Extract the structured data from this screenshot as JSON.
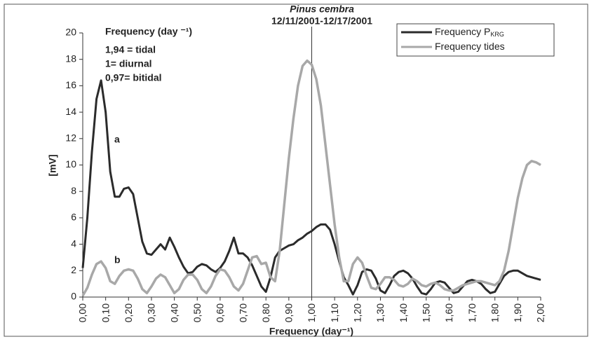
{
  "chart_data": {
    "type": "line",
    "title": "Pinus cembra",
    "subtitle": "12/11/2001-12/17/2001",
    "xlabel": "Frequency (day⁻¹)",
    "ylabel": "[mV]",
    "annotations": [
      "Frequency (day ⁻¹)",
      "1,94 = tidal",
      "1= diurnal",
      "0,97= bitidal"
    ],
    "curve_labels": [
      "a",
      "b"
    ],
    "vline": 1,
    "x": [
      0,
      0.02,
      0.04,
      0.06,
      0.08,
      0.1,
      0.12,
      0.14,
      0.16,
      0.18,
      0.2,
      0.22,
      0.24,
      0.26,
      0.28,
      0.3,
      0.32,
      0.34,
      0.36,
      0.38,
      0.4,
      0.42,
      0.44,
      0.46,
      0.48,
      0.5,
      0.52,
      0.54,
      0.56,
      0.58,
      0.6,
      0.62,
      0.64,
      0.66,
      0.68,
      0.7,
      0.72,
      0.74,
      0.76,
      0.78,
      0.8,
      0.82,
      0.84,
      0.86,
      0.88,
      0.9,
      0.92,
      0.94,
      0.96,
      0.98,
      1,
      1.02,
      1.04,
      1.06,
      1.08,
      1.1,
      1.12,
      1.14,
      1.16,
      1.18,
      1.2,
      1.22,
      1.24,
      1.26,
      1.28,
      1.3,
      1.32,
      1.34,
      1.36,
      1.38,
      1.4,
      1.42,
      1.44,
      1.46,
      1.48,
      1.5,
      1.52,
      1.54,
      1.56,
      1.58,
      1.6,
      1.62,
      1.64,
      1.66,
      1.68,
      1.7,
      1.72,
      1.74,
      1.76,
      1.78,
      1.8,
      1.82,
      1.84,
      1.86,
      1.88,
      1.9,
      1.92,
      1.94,
      1.96,
      1.98,
      2
    ],
    "series": [
      {
        "name": "Frequency P",
        "name_subscript": "KRG",
        "color": "#2b2b2b",
        "values": [
          2.2,
          6,
          11,
          15,
          16.4,
          14,
          9.5,
          7.6,
          7.6,
          8.2,
          8.3,
          7.8,
          6,
          4.2,
          3.3,
          3.2,
          3.6,
          4.0,
          3.6,
          4.5,
          3.8,
          3.0,
          2.3,
          1.8,
          1.9,
          2.3,
          2.5,
          2.4,
          2.1,
          1.9,
          2.2,
          2.7,
          3.5,
          4.5,
          3.3,
          3.3,
          3.0,
          2.4,
          1.6,
          0.8,
          0.4,
          1.5,
          3.0,
          3.5,
          3.7,
          3.9,
          4.0,
          4.3,
          4.5,
          4.8,
          5.0,
          5.3,
          5.5,
          5.5,
          5.1,
          4.0,
          2.7,
          1.5,
          0.9,
          0.2,
          0.9,
          1.9,
          2.1,
          2.0,
          1.4,
          0.5,
          0.3,
          0.9,
          1.6,
          1.9,
          2.0,
          1.8,
          1.4,
          0.8,
          0.3,
          0.2,
          0.6,
          1.1,
          1.2,
          1.1,
          0.7,
          0.3,
          0.4,
          0.8,
          1.2,
          1.3,
          1.2,
          1.0,
          0.6,
          0.3,
          0.4,
          1.0,
          1.6,
          1.9,
          2.0,
          2.0,
          1.8,
          1.6,
          1.5,
          1.4,
          1.3
        ]
      },
      {
        "name": "Frequency tides",
        "color": "#a8a8a8",
        "values": [
          0.1,
          0.7,
          1.7,
          2.5,
          2.7,
          2.2,
          1.2,
          1.0,
          1.6,
          2.0,
          2.1,
          2.0,
          1.4,
          0.6,
          0.3,
          0.8,
          1.4,
          1.7,
          1.5,
          0.9,
          0.3,
          0.6,
          1.3,
          1.7,
          1.7,
          1.3,
          0.6,
          0.3,
          0.8,
          1.6,
          2.1,
          2.0,
          1.5,
          0.8,
          0.5,
          1.0,
          2.0,
          3.0,
          3.1,
          2.5,
          2.6,
          1.5,
          1.2,
          3.5,
          7,
          10.5,
          13.5,
          16,
          17.5,
          17.9,
          17.6,
          16.5,
          14.5,
          11.5,
          8.5,
          5.5,
          3.0,
          1.2,
          1.2,
          2.5,
          3.0,
          2.6,
          1.6,
          0.7,
          0.6,
          1.0,
          1.5,
          1.5,
          1.3,
          0.9,
          0.8,
          1.0,
          1.4,
          1.2,
          0.9,
          0.8,
          1.0,
          1.1,
          0.9,
          0.6,
          0.5,
          0.5,
          0.7,
          0.9,
          1.0,
          1.1,
          1.2,
          1.2,
          1.1,
          1.0,
          0.9,
          1.2,
          2.0,
          3.5,
          5.5,
          7.5,
          9.0,
          10.0,
          10.3,
          10.2,
          10.0
        ]
      }
    ],
    "xlim": [
      0,
      2
    ],
    "ylim": [
      0,
      20
    ],
    "xticks": [
      {
        "value": 0,
        "label": "0,00"
      },
      {
        "value": 0.1,
        "label": "0,10"
      },
      {
        "value": 0.2,
        "label": "0,20"
      },
      {
        "value": 0.3,
        "label": "0,30"
      },
      {
        "value": 0.4,
        "label": "0,40"
      },
      {
        "value": 0.5,
        "label": "0,50"
      },
      {
        "value": 0.6,
        "label": "0,60"
      },
      {
        "value": 0.7,
        "label": "0,70"
      },
      {
        "value": 0.8,
        "label": "0,80"
      },
      {
        "value": 0.9,
        "label": "0,90"
      },
      {
        "value": 1,
        "label": "1,00"
      },
      {
        "value": 1.1,
        "label": "1,10"
      },
      {
        "value": 1.2,
        "label": "1,20"
      },
      {
        "value": 1.3,
        "label": "1,30"
      },
      {
        "value": 1.4,
        "label": "1,40"
      },
      {
        "value": 1.5,
        "label": "1,50"
      },
      {
        "value": 1.6,
        "label": "1,60"
      },
      {
        "value": 1.7,
        "label": "1,70"
      },
      {
        "value": 1.8,
        "label": "1,80"
      },
      {
        "value": 1.9,
        "label": "1,90"
      },
      {
        "value": 2,
        "label": "2,00"
      }
    ],
    "yticks": [
      0,
      2,
      4,
      6,
      8,
      10,
      12,
      14,
      16,
      18,
      20
    ],
    "legend": "top-right"
  }
}
